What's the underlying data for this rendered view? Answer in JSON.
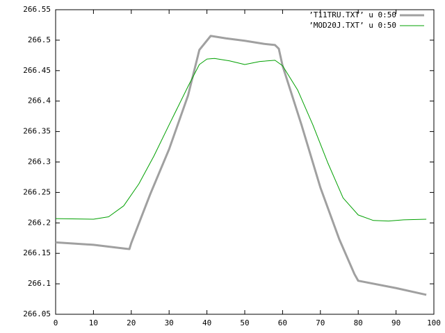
{
  "chart_data": {
    "type": "line",
    "xlim": [
      0,
      100
    ],
    "xticks": [
      0,
      10,
      20,
      30,
      40,
      50,
      60,
      70,
      80,
      90,
      100
    ],
    "ylim": [
      266.05,
      266.55
    ],
    "yticks": [
      266.05,
      266.1,
      266.15,
      266.2,
      266.25,
      266.3,
      266.35,
      266.4,
      266.45,
      266.5,
      266.55
    ],
    "legend": "top-right",
    "series": [
      {
        "name": "’T11TRU.TXT’ u 0:50",
        "color": "#a0a0a0",
        "width": 3,
        "x": [
          0,
          10,
          18,
          19.5,
          20,
          25,
          30,
          35,
          38,
          41,
          45,
          50,
          55,
          58,
          59,
          60,
          65,
          70,
          75,
          79,
          80,
          90,
          98
        ],
        "values": [
          266.168,
          266.164,
          266.158,
          266.157,
          266.167,
          266.247,
          266.321,
          266.409,
          266.484,
          266.507,
          266.503,
          266.499,
          266.494,
          266.492,
          266.486,
          266.458,
          266.361,
          266.258,
          266.173,
          266.116,
          266.105,
          266.093,
          266.082
        ]
      },
      {
        "name": "’MOD20J.TXT’ u 0:50",
        "color": "#00a000",
        "width": 1,
        "x": [
          0,
          10,
          14,
          18,
          22,
          26,
          30,
          35,
          38,
          40,
          42,
          46,
          50,
          54,
          58,
          60,
          64,
          68,
          72,
          76,
          80,
          84,
          88,
          92,
          98
        ],
        "values": [
          266.207,
          266.206,
          266.21,
          266.228,
          266.264,
          266.31,
          266.361,
          266.424,
          266.46,
          266.469,
          266.47,
          266.466,
          266.46,
          266.465,
          266.467,
          266.458,
          266.418,
          266.361,
          266.298,
          266.241,
          266.213,
          266.204,
          266.203,
          266.205,
          266.206
        ]
      }
    ]
  }
}
